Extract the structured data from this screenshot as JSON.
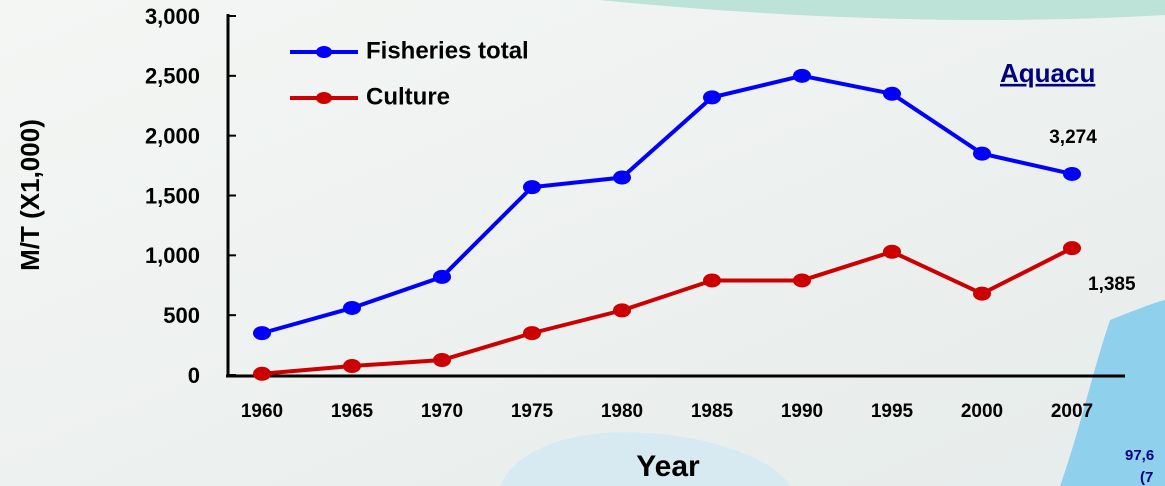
{
  "chart_data": {
    "type": "line",
    "x_label": "Year",
    "y_label": "M/T (X1,000)",
    "categories": [
      "1960",
      "1965",
      "1970",
      "1975",
      "1980",
      "1985",
      "1990",
      "1995",
      "2000",
      "2007"
    ],
    "series": [
      {
        "name": "Fisheries total",
        "color": "#0000ff",
        "values": [
          350,
          560,
          820,
          1570,
          1650,
          2320,
          2500,
          2350,
          1850,
          1680
        ]
      },
      {
        "name": "Culture",
        "color": "#cc0000",
        "values": [
          10,
          75,
          125,
          350,
          540,
          790,
          790,
          1030,
          680,
          1060
        ]
      }
    ],
    "ylim": [
      0,
      3000
    ],
    "yticks": [
      0,
      500,
      {
        "value": 1000,
        "label": "1,000"
      },
      {
        "value": 1500,
        "label": "1,500"
      },
      {
        "value": 2000,
        "label": "2,000"
      },
      {
        "value": 2500,
        "label": "2,500"
      },
      {
        "value": 3000,
        "label": "3,000"
      }
    ],
    "legend": "upper left",
    "annotations": [
      "Aquacu",
      "3,274",
      "1,385",
      "97,6",
      "(7"
    ]
  }
}
